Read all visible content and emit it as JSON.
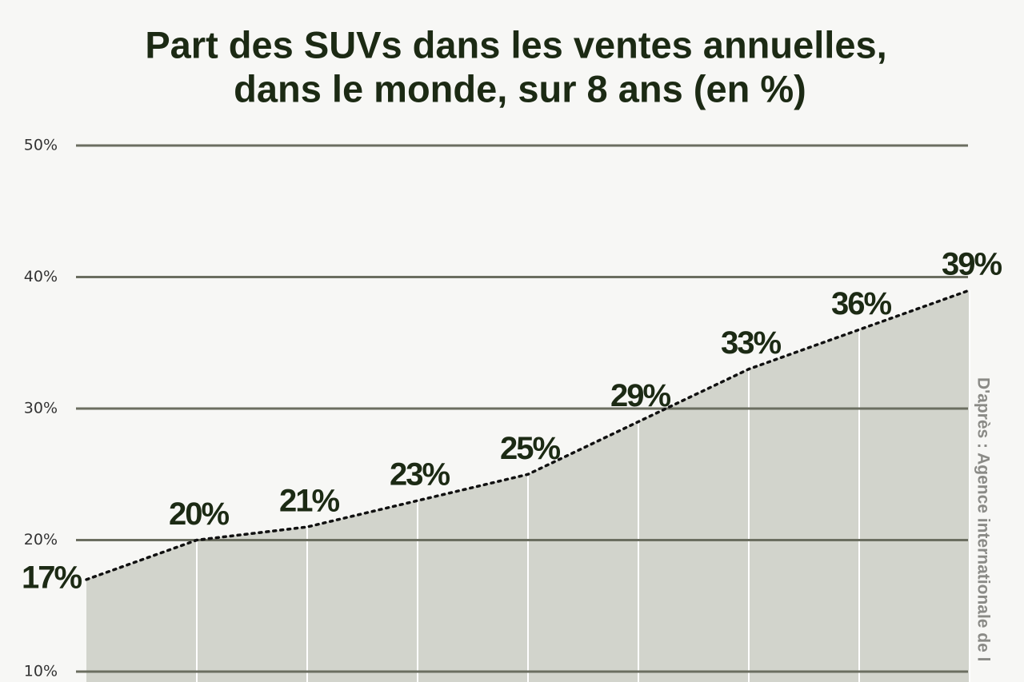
{
  "chart_data": {
    "type": "area",
    "title": [
      "Part des SUVs dans les ventes annuelles,",
      "dans le monde, sur 8 ans (en %)"
    ],
    "source": "D'après : Agence internationale de l",
    "categories": [
      null,
      null,
      null,
      null,
      null,
      null,
      null,
      null,
      null
    ],
    "values": [
      17,
      20,
      21,
      23,
      25,
      29,
      33,
      36,
      39
    ],
    "value_labels": [
      "17%",
      "20%",
      "21%",
      "23%",
      "25%",
      "29%",
      "33%",
      "36%",
      "39%"
    ],
    "color": "#d2d4cc",
    "line_color": "#111111",
    "ylim": [
      9.2,
      50
    ],
    "yticks": [
      {
        "value": 10,
        "label": "10%"
      },
      {
        "value": 20,
        "label": "20%"
      },
      {
        "value": 30,
        "label": "30%"
      },
      {
        "value": 40,
        "label": "40%"
      },
      {
        "value": 50,
        "label": "50%"
      }
    ],
    "grid": true
  }
}
